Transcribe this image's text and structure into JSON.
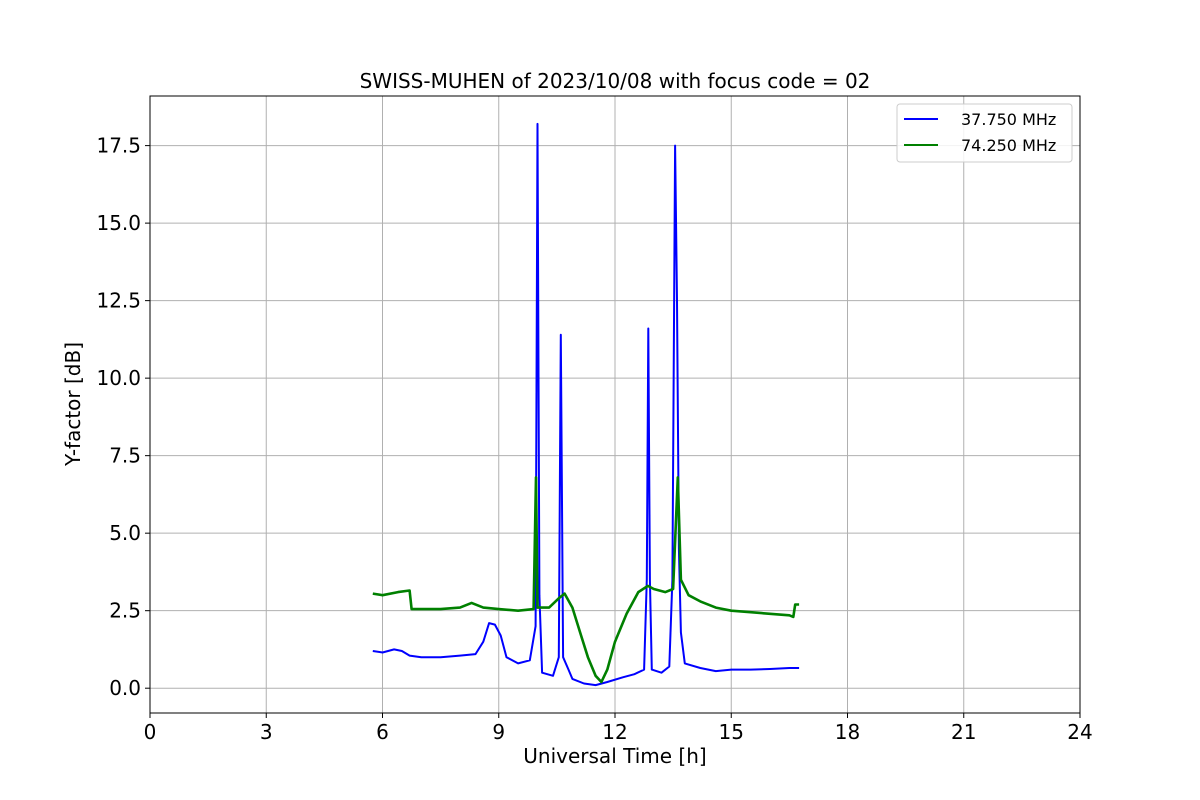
{
  "chart_data": {
    "type": "line",
    "title": "SWISS-MUHEN of 2023/10/08 with focus code = 02",
    "xlabel": "Universal Time [h]",
    "ylabel": "Y-factor [dB]",
    "xlim": [
      0,
      24
    ],
    "ylim": [
      -0.8,
      19.1
    ],
    "xticks": [
      0,
      3,
      6,
      9,
      12,
      15,
      18,
      21,
      24
    ],
    "xtick_labels": [
      "0",
      "3",
      "6",
      "9",
      "12",
      "15",
      "18",
      "21",
      "24"
    ],
    "yticks": [
      0,
      2.5,
      5,
      7.5,
      10,
      12.5,
      15,
      17.5
    ],
    "ytick_labels": [
      "0.0",
      "2.5",
      "5.0",
      "7.5",
      "10.0",
      "12.5",
      "15.0",
      "17.5"
    ],
    "grid": true,
    "legend_position": "top-right",
    "series": [
      {
        "name": "37.750 MHz",
        "color": "#0000ff",
        "points": [
          [
            5.75,
            1.2
          ],
          [
            6.0,
            1.15
          ],
          [
            6.3,
            1.25
          ],
          [
            6.5,
            1.2
          ],
          [
            6.7,
            1.05
          ],
          [
            7.0,
            1.0
          ],
          [
            7.5,
            1.0
          ],
          [
            8.0,
            1.05
          ],
          [
            8.4,
            1.1
          ],
          [
            8.6,
            1.5
          ],
          [
            8.75,
            2.1
          ],
          [
            8.9,
            2.05
          ],
          [
            9.05,
            1.7
          ],
          [
            9.2,
            1.0
          ],
          [
            9.5,
            0.8
          ],
          [
            9.8,
            0.9
          ],
          [
            9.95,
            2.0
          ],
          [
            10.0,
            18.2
          ],
          [
            10.05,
            3.0
          ],
          [
            10.12,
            0.5
          ],
          [
            10.4,
            0.4
          ],
          [
            10.55,
            1.0
          ],
          [
            10.6,
            11.4
          ],
          [
            10.66,
            1.0
          ],
          [
            10.8,
            0.6
          ],
          [
            10.9,
            0.3
          ],
          [
            11.2,
            0.15
          ],
          [
            11.5,
            0.1
          ],
          [
            11.8,
            0.2
          ],
          [
            12.2,
            0.35
          ],
          [
            12.5,
            0.45
          ],
          [
            12.75,
            0.6
          ],
          [
            12.82,
            3.5
          ],
          [
            12.86,
            11.6
          ],
          [
            12.9,
            3.5
          ],
          [
            12.95,
            0.6
          ],
          [
            13.2,
            0.5
          ],
          [
            13.4,
            0.7
          ],
          [
            13.48,
            3.5
          ],
          [
            13.55,
            17.5
          ],
          [
            13.6,
            12.5
          ],
          [
            13.65,
            4.5
          ],
          [
            13.7,
            1.8
          ],
          [
            13.8,
            0.8
          ],
          [
            14.2,
            0.65
          ],
          [
            14.6,
            0.55
          ],
          [
            15.0,
            0.6
          ],
          [
            15.5,
            0.6
          ],
          [
            16.0,
            0.62
          ],
          [
            16.5,
            0.65
          ],
          [
            16.75,
            0.65
          ]
        ]
      },
      {
        "name": "74.250 MHz",
        "color": "#008000",
        "points": [
          [
            5.75,
            3.05
          ],
          [
            6.0,
            3.0
          ],
          [
            6.4,
            3.1
          ],
          [
            6.7,
            3.15
          ],
          [
            6.75,
            2.55
          ],
          [
            7.0,
            2.55
          ],
          [
            7.5,
            2.55
          ],
          [
            8.0,
            2.6
          ],
          [
            8.3,
            2.75
          ],
          [
            8.6,
            2.6
          ],
          [
            9.0,
            2.55
          ],
          [
            9.5,
            2.5
          ],
          [
            9.9,
            2.55
          ],
          [
            9.96,
            6.8
          ],
          [
            10.0,
            2.6
          ],
          [
            10.3,
            2.6
          ],
          [
            10.55,
            2.9
          ],
          [
            10.7,
            3.05
          ],
          [
            10.9,
            2.6
          ],
          [
            11.1,
            1.8
          ],
          [
            11.3,
            1.0
          ],
          [
            11.5,
            0.4
          ],
          [
            11.65,
            0.2
          ],
          [
            11.8,
            0.6
          ],
          [
            12.0,
            1.5
          ],
          [
            12.3,
            2.4
          ],
          [
            12.6,
            3.1
          ],
          [
            12.85,
            3.3
          ],
          [
            13.0,
            3.2
          ],
          [
            13.3,
            3.1
          ],
          [
            13.5,
            3.2
          ],
          [
            13.62,
            6.8
          ],
          [
            13.7,
            3.5
          ],
          [
            13.9,
            3.0
          ],
          [
            14.2,
            2.8
          ],
          [
            14.6,
            2.6
          ],
          [
            15.0,
            2.5
          ],
          [
            15.5,
            2.45
          ],
          [
            16.0,
            2.4
          ],
          [
            16.5,
            2.35
          ],
          [
            16.6,
            2.3
          ],
          [
            16.65,
            2.7
          ],
          [
            16.75,
            2.7
          ]
        ]
      }
    ]
  }
}
